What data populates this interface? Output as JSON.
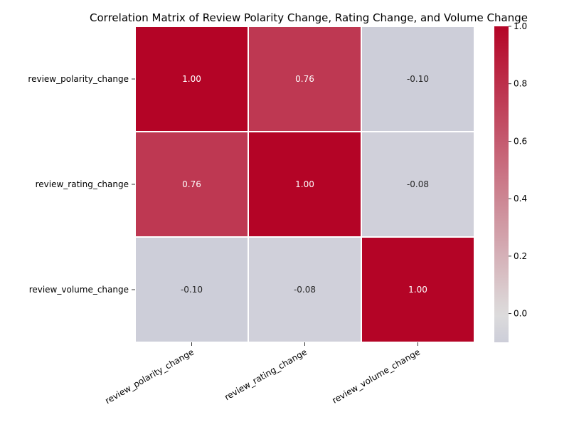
{
  "chart_data": {
    "type": "heatmap",
    "title": "Correlation Matrix of Review Polarity Change, Rating Change, and Volume Change",
    "rows": [
      "review_polarity_change",
      "review_rating_change",
      "review_volume_change"
    ],
    "columns": [
      "review_polarity_change",
      "review_rating_change",
      "review_volume_change"
    ],
    "values": [
      [
        1.0,
        0.76,
        -0.1
      ],
      [
        0.76,
        1.0,
        -0.08
      ],
      [
        -0.1,
        -0.08,
        1.0
      ]
    ],
    "value_labels": [
      [
        "1.00",
        "0.76",
        "-0.10"
      ],
      [
        "0.76",
        "1.00",
        "-0.08"
      ],
      [
        "-0.10",
        "-0.08",
        "1.00"
      ]
    ],
    "colormap": "coolwarm",
    "center": 0,
    "vmin": -0.1,
    "vmax": 1.0,
    "colorbar": {
      "ticks": [
        0.0,
        0.2,
        0.4,
        0.6,
        0.8,
        1.0
      ],
      "tick_labels": [
        "0.0",
        "0.2",
        "0.4",
        "0.6",
        "0.8",
        "1.0"
      ]
    },
    "colors": {
      "high": "#b40426",
      "mid": "#dddcdc",
      "low": "#3b4cc0",
      "cell_border": "#ffffff"
    }
  }
}
